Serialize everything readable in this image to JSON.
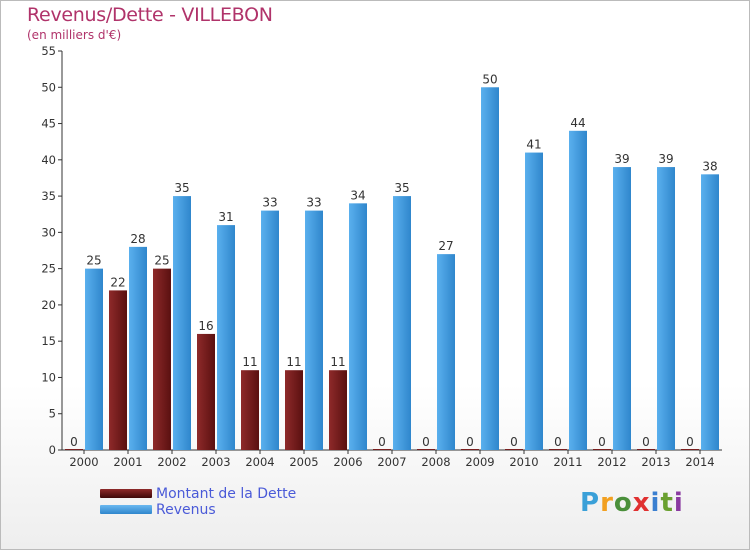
{
  "chart_data": {
    "type": "bar",
    "title": "Revenus/Dette - VILLEBON",
    "subtitle": "(en milliers d'€)",
    "xlabel": "",
    "ylabel": "",
    "ylim": [
      0,
      55
    ],
    "yticks": [
      0,
      5,
      10,
      15,
      20,
      25,
      30,
      35,
      40,
      45,
      50,
      55
    ],
    "grid": false,
    "categories": [
      "2000",
      "2001",
      "2002",
      "2003",
      "2004",
      "2005",
      "2006",
      "2007",
      "2008",
      "2009",
      "2010",
      "2011",
      "2012",
      "2013",
      "2014"
    ],
    "series": [
      {
        "name": "Montant de la Dette",
        "color": "#7a1f1f",
        "values": [
          0,
          22,
          25,
          16,
          11,
          11,
          11,
          0,
          0,
          0,
          0,
          0,
          0,
          0,
          0
        ]
      },
      {
        "name": "Revenus",
        "color": "#3d9be0",
        "values": [
          25,
          28,
          35,
          31,
          33,
          33,
          34,
          35,
          27,
          50,
          41,
          44,
          39,
          39,
          38
        ]
      }
    ],
    "legend_position": "bottom-left"
  },
  "logo": {
    "letters": [
      "P",
      "r",
      "o",
      "x",
      "i",
      "t",
      "i"
    ],
    "colors": [
      "#3aa0d8",
      "#f2a020",
      "#4a8f3a",
      "#e03030",
      "#3a7fd0",
      "#6aa030",
      "#8a3aa0"
    ]
  }
}
